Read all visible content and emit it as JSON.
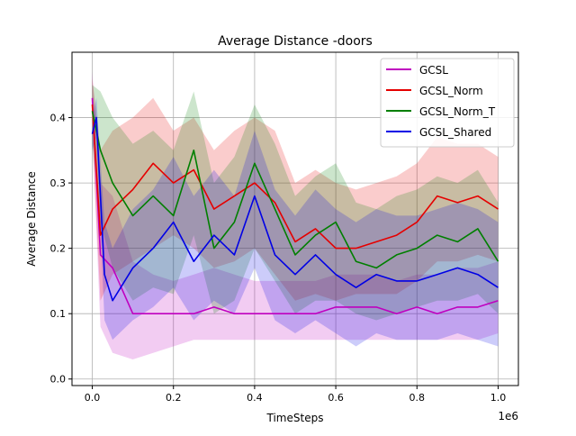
{
  "chart_data": {
    "type": "line",
    "title": "Average Distance -doors",
    "xlabel": "TimeSteps",
    "ylabel": "Average Distance",
    "x_offset_label": "1e6",
    "xlim": [
      -0.05,
      1.05
    ],
    "ylim": [
      -0.01,
      0.5
    ],
    "x_ticks": [
      0,
      0.2,
      0.4,
      0.6,
      0.8,
      1.0
    ],
    "x_tick_labels": [
      "0.0",
      "0.2",
      "0.4",
      "0.6",
      "0.8",
      "1.0"
    ],
    "y_ticks": [
      0,
      0.1,
      0.2,
      0.3,
      0.4
    ],
    "y_tick_labels": [
      "0.0",
      "0.1",
      "0.2",
      "0.3",
      "0.4"
    ],
    "grid": true,
    "legend_position": "top-right",
    "series": [
      {
        "name": "GCSL",
        "color": "#bf00bf",
        "x": [
          0,
          0.02,
          0.05,
          0.1,
          0.15,
          0.2,
          0.25,
          0.3,
          0.35,
          0.4,
          0.45,
          0.5,
          0.55,
          0.6,
          0.65,
          0.7,
          0.75,
          0.8,
          0.85,
          0.9,
          0.95,
          1.0
        ],
        "y": [
          0.43,
          0.19,
          0.17,
          0.1,
          0.1,
          0.1,
          0.1,
          0.11,
          0.1,
          0.1,
          0.1,
          0.1,
          0.1,
          0.11,
          0.11,
          0.11,
          0.1,
          0.11,
          0.1,
          0.11,
          0.11,
          0.12
        ],
        "lower": [
          0.38,
          0.08,
          0.04,
          0.03,
          0.04,
          0.05,
          0.06,
          0.06,
          0.06,
          0.06,
          0.06,
          0.06,
          0.06,
          0.06,
          0.06,
          0.06,
          0.06,
          0.06,
          0.06,
          0.06,
          0.06,
          0.07
        ],
        "upper": [
          0.47,
          0.3,
          0.28,
          0.18,
          0.16,
          0.15,
          0.16,
          0.17,
          0.16,
          0.15,
          0.15,
          0.15,
          0.15,
          0.16,
          0.16,
          0.16,
          0.15,
          0.16,
          0.16,
          0.17,
          0.17,
          0.18
        ]
      },
      {
        "name": "GCSL_Norm",
        "color": "#e50000",
        "x": [
          0,
          0.02,
          0.05,
          0.1,
          0.15,
          0.2,
          0.25,
          0.3,
          0.35,
          0.4,
          0.45,
          0.5,
          0.55,
          0.6,
          0.65,
          0.7,
          0.75,
          0.8,
          0.85,
          0.9,
          0.95,
          1.0
        ],
        "y": [
          0.42,
          0.22,
          0.26,
          0.29,
          0.33,
          0.3,
          0.32,
          0.26,
          0.28,
          0.3,
          0.27,
          0.21,
          0.23,
          0.2,
          0.2,
          0.21,
          0.22,
          0.24,
          0.28,
          0.27,
          0.28,
          0.26
        ],
        "lower": [
          0.37,
          0.12,
          0.16,
          0.18,
          0.2,
          0.22,
          0.2,
          0.17,
          0.18,
          0.2,
          0.16,
          0.12,
          0.13,
          0.12,
          0.13,
          0.13,
          0.13,
          0.15,
          0.18,
          0.18,
          0.19,
          0.18
        ],
        "upper": [
          0.46,
          0.35,
          0.38,
          0.4,
          0.43,
          0.38,
          0.4,
          0.35,
          0.38,
          0.4,
          0.38,
          0.3,
          0.32,
          0.3,
          0.29,
          0.3,
          0.31,
          0.33,
          0.37,
          0.36,
          0.36,
          0.34
        ]
      },
      {
        "name": "GCSL_Norm_T",
        "color": "#007f00",
        "x": [
          0,
          0.02,
          0.05,
          0.1,
          0.15,
          0.2,
          0.25,
          0.3,
          0.35,
          0.4,
          0.45,
          0.5,
          0.55,
          0.6,
          0.65,
          0.7,
          0.75,
          0.8,
          0.85,
          0.9,
          0.95,
          1.0
        ],
        "y": [
          0.41,
          0.35,
          0.3,
          0.25,
          0.28,
          0.25,
          0.35,
          0.2,
          0.24,
          0.33,
          0.26,
          0.19,
          0.22,
          0.24,
          0.18,
          0.17,
          0.19,
          0.2,
          0.22,
          0.21,
          0.23,
          0.18
        ],
        "lower": [
          0.36,
          0.24,
          0.17,
          0.12,
          0.14,
          0.13,
          0.22,
          0.1,
          0.12,
          0.2,
          0.15,
          0.1,
          0.12,
          0.12,
          0.1,
          0.09,
          0.1,
          0.11,
          0.12,
          0.12,
          0.13,
          0.1
        ],
        "upper": [
          0.45,
          0.44,
          0.4,
          0.36,
          0.38,
          0.35,
          0.44,
          0.3,
          0.34,
          0.42,
          0.36,
          0.28,
          0.31,
          0.33,
          0.27,
          0.26,
          0.28,
          0.29,
          0.31,
          0.3,
          0.32,
          0.27
        ]
      },
      {
        "name": "GCSL_Shared",
        "color": "#0000e5",
        "x": [
          0,
          0.01,
          0.03,
          0.05,
          0.1,
          0.15,
          0.2,
          0.25,
          0.3,
          0.35,
          0.4,
          0.45,
          0.5,
          0.55,
          0.6,
          0.65,
          0.7,
          0.75,
          0.8,
          0.85,
          0.9,
          0.95,
          1.0
        ],
        "y": [
          0.375,
          0.4,
          0.16,
          0.12,
          0.17,
          0.2,
          0.24,
          0.18,
          0.22,
          0.19,
          0.28,
          0.19,
          0.16,
          0.19,
          0.16,
          0.14,
          0.16,
          0.15,
          0.15,
          0.16,
          0.17,
          0.16,
          0.14
        ],
        "lower": [
          0.35,
          0.37,
          0.09,
          0.06,
          0.09,
          0.11,
          0.14,
          0.09,
          0.12,
          0.1,
          0.17,
          0.09,
          0.07,
          0.09,
          0.07,
          0.05,
          0.07,
          0.06,
          0.06,
          0.06,
          0.07,
          0.06,
          0.05
        ],
        "upper": [
          0.4,
          0.43,
          0.24,
          0.2,
          0.26,
          0.29,
          0.34,
          0.28,
          0.32,
          0.28,
          0.38,
          0.29,
          0.25,
          0.29,
          0.26,
          0.24,
          0.26,
          0.25,
          0.25,
          0.26,
          0.27,
          0.26,
          0.24
        ]
      }
    ]
  }
}
